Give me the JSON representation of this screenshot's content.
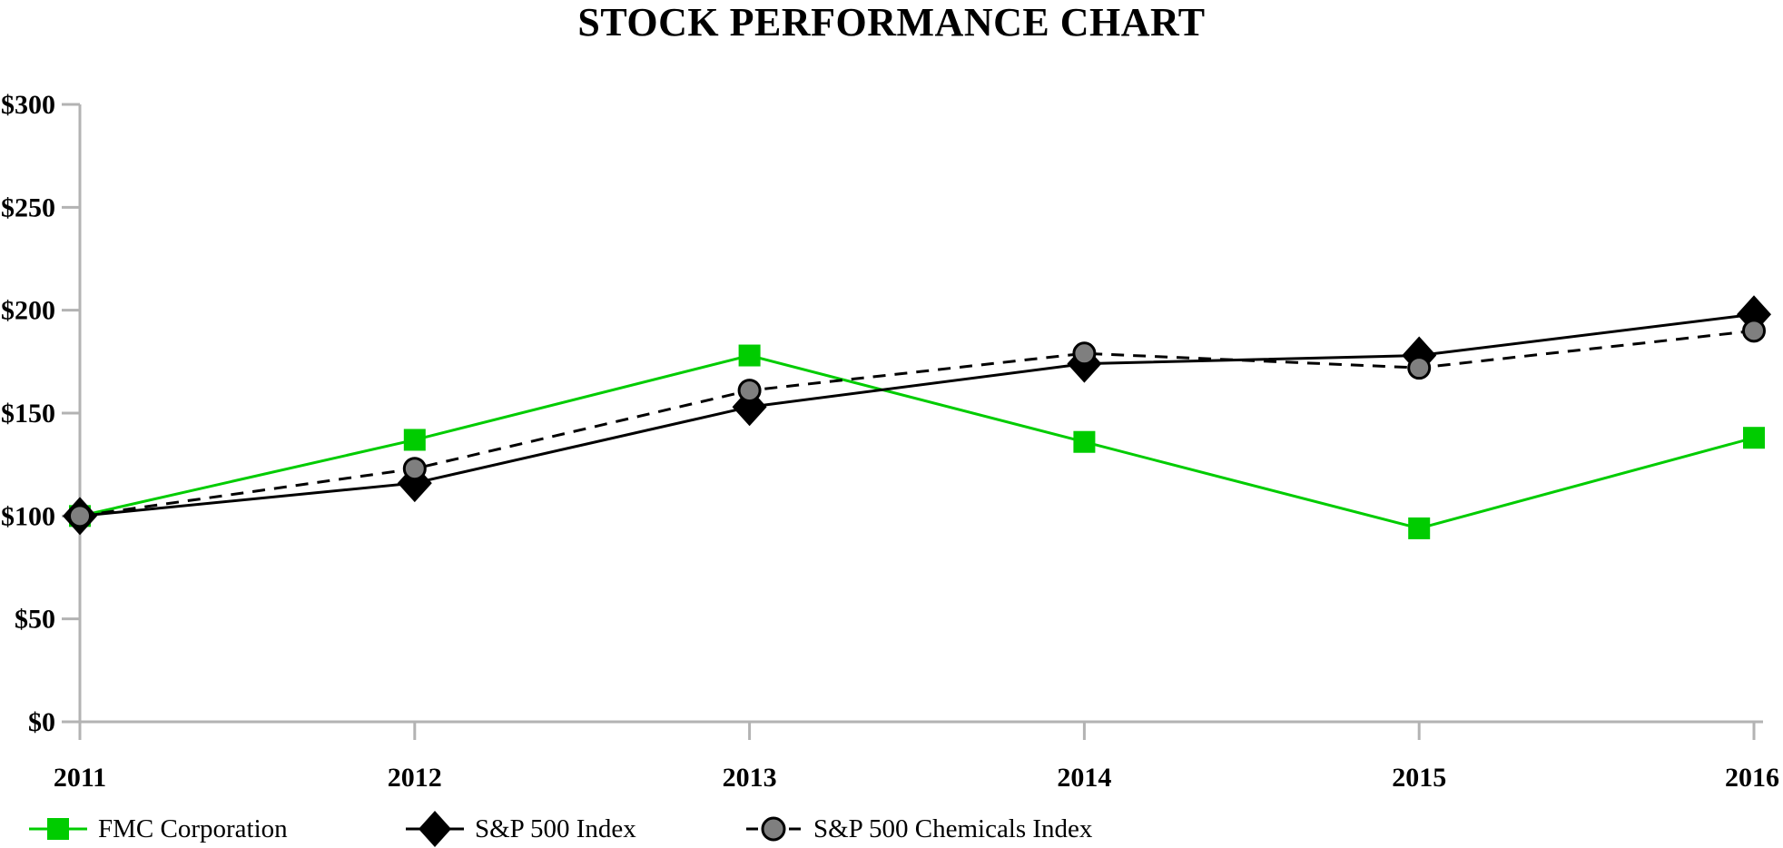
{
  "title": "STOCK PERFORMANCE CHART",
  "chart_data": {
    "type": "line",
    "title": "STOCK PERFORMANCE CHART",
    "categories": [
      "2011",
      "2012",
      "2013",
      "2014",
      "2015",
      "2016"
    ],
    "series": [
      {
        "name": "FMC Corporation",
        "values": [
          100,
          137,
          178,
          136,
          94,
          138
        ],
        "color": "#00cc00",
        "line_style": "solid",
        "marker": "square"
      },
      {
        "name": "S&P 500 Index",
        "values": [
          100,
          116,
          153,
          174,
          178,
          198
        ],
        "color": "#000000",
        "line_style": "solid",
        "marker": "diamond"
      },
      {
        "name": "S&P 500 Chemicals Index",
        "values": [
          100,
          123,
          161,
          179,
          172,
          190
        ],
        "color": "#000000",
        "marker_fill": "#7f7f7f",
        "line_style": "dashed",
        "marker": "circle"
      }
    ],
    "ylim": [
      0,
      300
    ],
    "yticks": [
      {
        "value": 0,
        "label": "$0"
      },
      {
        "value": 50,
        "label": "$50"
      },
      {
        "value": 100,
        "label": "$100"
      },
      {
        "value": 150,
        "label": "$150"
      },
      {
        "value": 200,
        "label": "$200"
      },
      {
        "value": 250,
        "label": "$250"
      },
      {
        "value": 300,
        "label": "$300"
      }
    ],
    "xlabel": "",
    "ylabel": "",
    "grid": false,
    "legend_position": "bottom-left",
    "axis_color": "#b3b3b3",
    "background": "#ffffff"
  },
  "legend": {
    "items": [
      {
        "label": "FMC Corporation",
        "marker": "square"
      },
      {
        "label": "S&P 500 Index",
        "marker": "diamond"
      },
      {
        "label": "S&P 500 Chemicals Index",
        "marker": "circle"
      }
    ]
  }
}
